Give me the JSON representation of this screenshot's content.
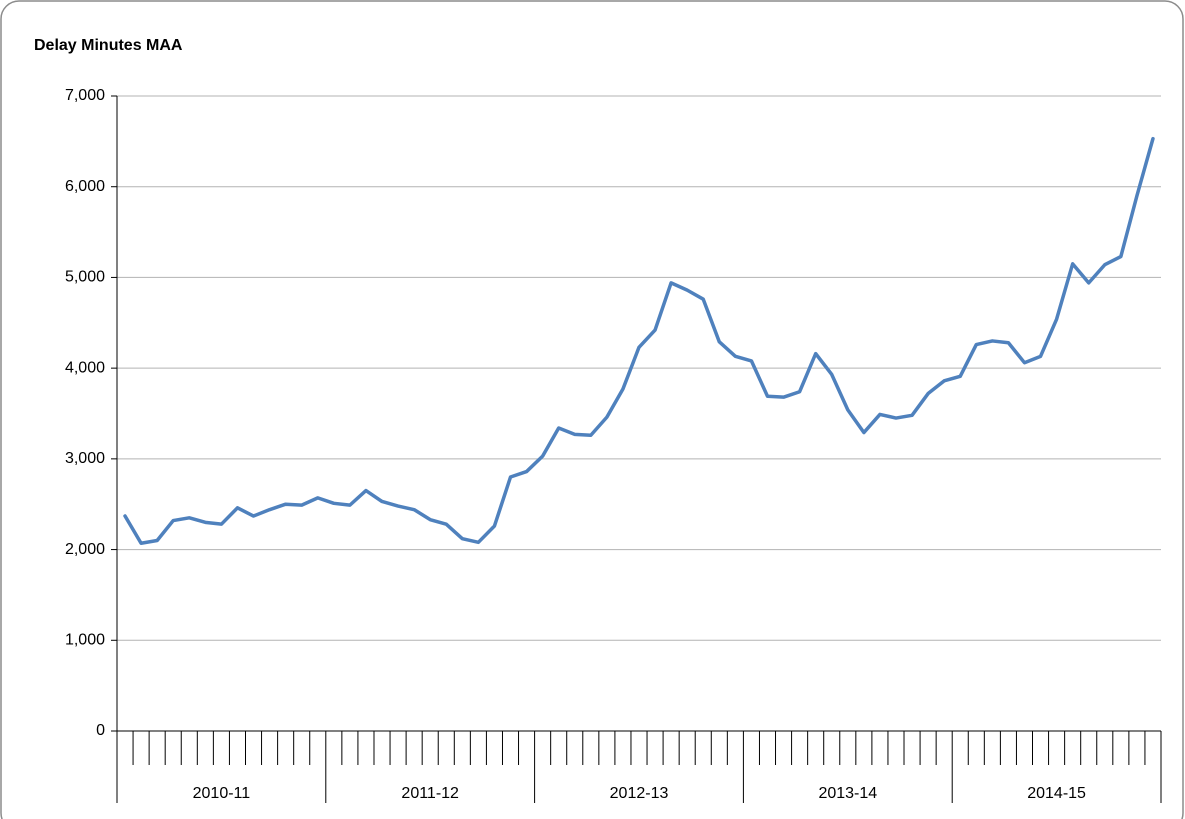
{
  "chart_data": {
    "type": "line",
    "title": "Delay Minutes MAA",
    "categories": [
      null,
      null,
      null,
      null,
      null,
      null,
      null,
      null,
      null,
      null,
      null,
      null,
      null,
      null,
      null,
      null,
      null,
      null,
      null,
      null,
      null,
      null,
      null,
      null,
      null,
      null,
      null,
      null,
      null,
      null,
      null,
      null,
      null,
      null,
      null,
      null,
      null,
      null,
      null,
      null,
      null,
      null,
      null,
      null,
      null,
      null,
      null,
      null,
      null,
      null,
      null,
      null,
      null,
      null,
      null,
      null,
      null,
      null,
      null,
      null,
      null,
      null,
      null,
      null,
      null
    ],
    "x_groups": [
      "2010-11",
      "2011-12",
      "2012-13",
      "2013-14",
      "2014-15"
    ],
    "values": [
      2370,
      2070,
      2100,
      2320,
      2350,
      2300,
      2280,
      2460,
      2370,
      2440,
      2500,
      2490,
      2570,
      2510,
      2490,
      2650,
      2530,
      2480,
      2440,
      2330,
      2280,
      2120,
      2080,
      2260,
      2800,
      2860,
      3030,
      3340,
      3270,
      3260,
      3460,
      3770,
      4230,
      4420,
      4940,
      4860,
      4760,
      4290,
      4130,
      4080,
      3690,
      3680,
      3740,
      4160,
      3930,
      3540,
      3290,
      3490,
      3450,
      3480,
      3720,
      3860,
      3910,
      4260,
      4300,
      4280,
      4060,
      4130,
      4540,
      5150,
      4940,
      5140,
      5230,
      5900,
      6530
    ],
    "color": "#4f81bd",
    "ylim": [
      0,
      7000
    ],
    "yticks": [
      0,
      {
        "value": 1000,
        "label": "1,000"
      },
      {
        "value": 2000,
        "label": "2,000"
      },
      {
        "value": 3000,
        "label": "3,000"
      },
      {
        "value": 4000,
        "label": "4,000"
      },
      {
        "value": 5000,
        "label": "5,000"
      },
      {
        "value": 6000,
        "label": "6,000"
      },
      {
        "value": 7000,
        "label": "7,000"
      }
    ],
    "grid": true
  }
}
